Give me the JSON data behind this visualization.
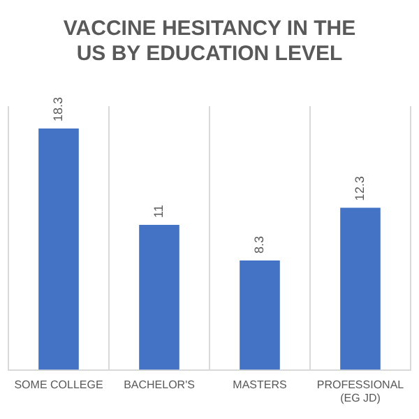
{
  "chart_data": {
    "type": "bar",
    "title": "VACCINE HESITANCY IN THE US BY EDUCATION LEVEL",
    "categories": [
      "SOME COLLEGE",
      "BACHELOR'S",
      "MASTERS",
      "PROFESSIONAL (EG JD)"
    ],
    "values": [
      18.3,
      11,
      8.3,
      12.3
    ],
    "color": "#4472c4",
    "data_labels": true,
    "grid": "x",
    "legend": false
  }
}
